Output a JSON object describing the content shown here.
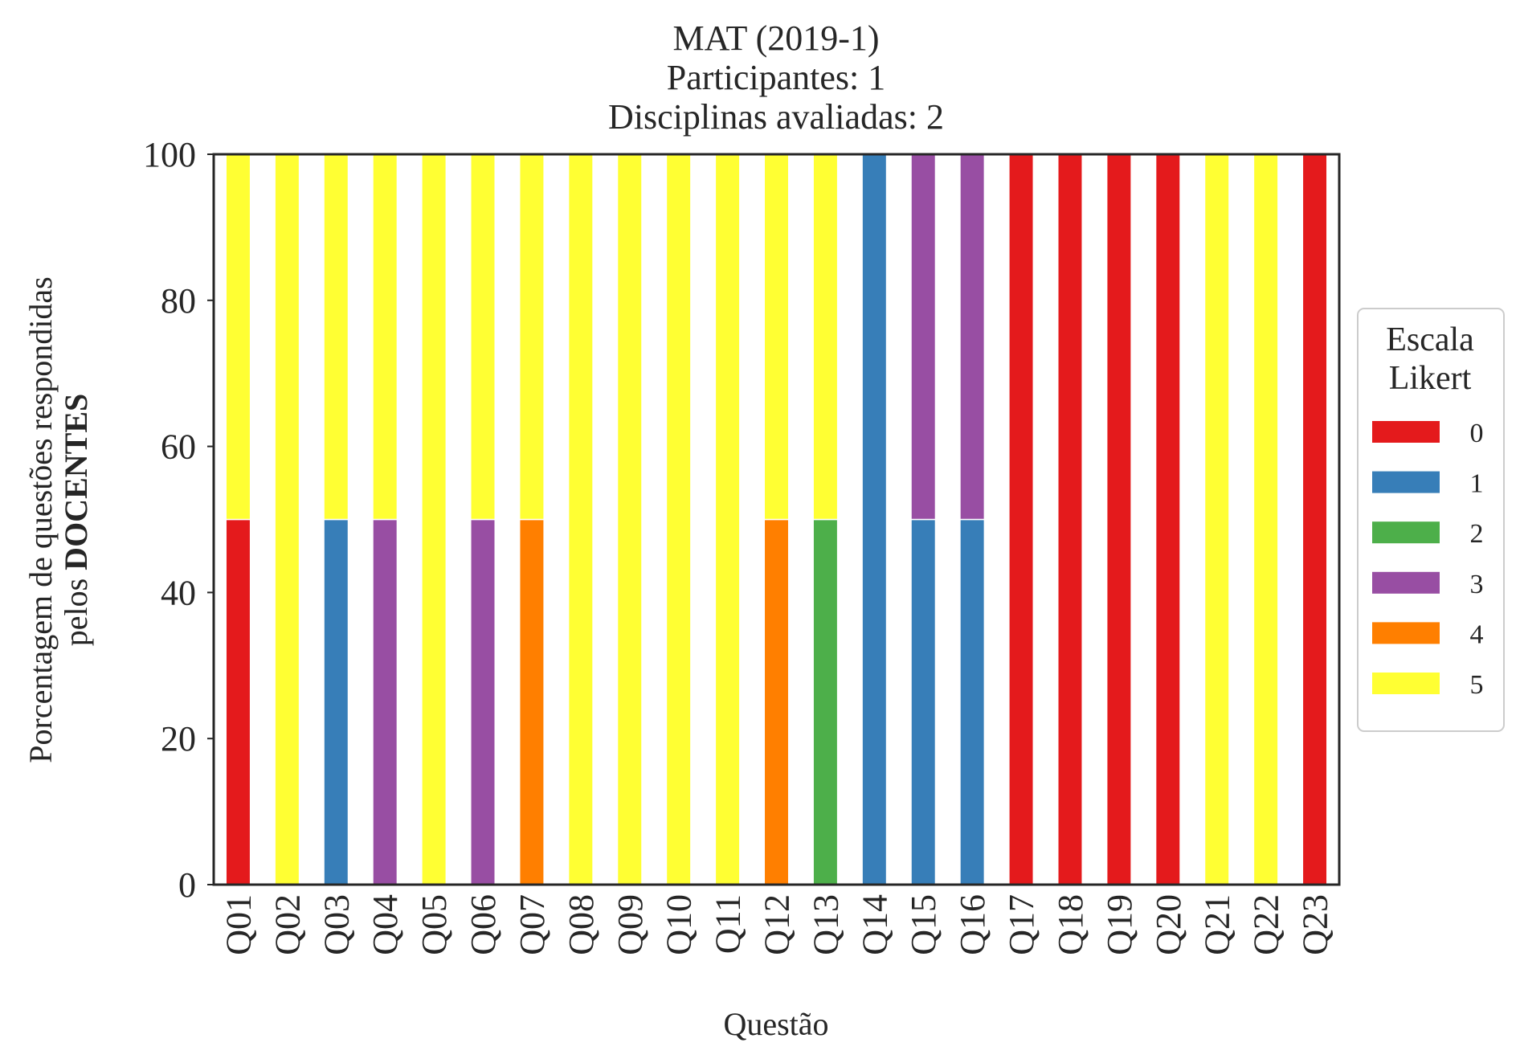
{
  "chart_data": {
    "type": "bar",
    "stacked": true,
    "title": [
      "MAT (2019-1)",
      "Participantes: 1",
      "Disciplinas avaliadas: 2"
    ],
    "xlabel": "Questão",
    "ylabel": {
      "line1": "Porcentagem de questões respondidas",
      "line2_prefix": "pelos ",
      "line2_bold": "DOCENTES"
    },
    "ylim": [
      0,
      100
    ],
    "yticks": [
      0,
      20,
      40,
      60,
      80,
      100
    ],
    "grid": false,
    "legend": {
      "title": [
        "Escala",
        "Likert"
      ],
      "placement": "right"
    },
    "categories": [
      "Q01",
      "Q02",
      "Q03",
      "Q04",
      "Q05",
      "Q06",
      "Q07",
      "Q08",
      "Q09",
      "Q10",
      "Q11",
      "Q12",
      "Q13",
      "Q14",
      "Q15",
      "Q16",
      "Q17",
      "Q18",
      "Q19",
      "Q20",
      "Q21",
      "Q22",
      "Q23"
    ],
    "series": [
      {
        "name": "0",
        "color": "#e41a1c",
        "values": [
          50,
          0,
          0,
          0,
          0,
          0,
          0,
          0,
          0,
          0,
          0,
          0,
          0,
          0,
          0,
          0,
          100,
          100,
          100,
          100,
          0,
          0,
          100
        ]
      },
      {
        "name": "1",
        "color": "#377eb8",
        "values": [
          0,
          0,
          50,
          0,
          0,
          0,
          0,
          0,
          0,
          0,
          0,
          0,
          0,
          100,
          50,
          50,
          0,
          0,
          0,
          0,
          0,
          0,
          0
        ]
      },
      {
        "name": "2",
        "color": "#4daf4a",
        "values": [
          0,
          0,
          0,
          0,
          0,
          0,
          0,
          0,
          0,
          0,
          0,
          0,
          50,
          0,
          0,
          0,
          0,
          0,
          0,
          0,
          0,
          0,
          0
        ]
      },
      {
        "name": "3",
        "color": "#984ea3",
        "values": [
          0,
          0,
          0,
          50,
          0,
          50,
          0,
          0,
          0,
          0,
          0,
          0,
          0,
          0,
          50,
          50,
          0,
          0,
          0,
          0,
          0,
          0,
          0
        ]
      },
      {
        "name": "4",
        "color": "#ff7f00",
        "values": [
          0,
          0,
          0,
          0,
          0,
          0,
          50,
          0,
          0,
          0,
          0,
          50,
          0,
          0,
          0,
          0,
          0,
          0,
          0,
          0,
          0,
          0,
          0
        ]
      },
      {
        "name": "5",
        "color": "#ffff33",
        "values": [
          50,
          100,
          50,
          50,
          100,
          50,
          50,
          100,
          100,
          100,
          100,
          50,
          50,
          0,
          0,
          0,
          0,
          0,
          0,
          0,
          100,
          100,
          0
        ]
      }
    ]
  }
}
